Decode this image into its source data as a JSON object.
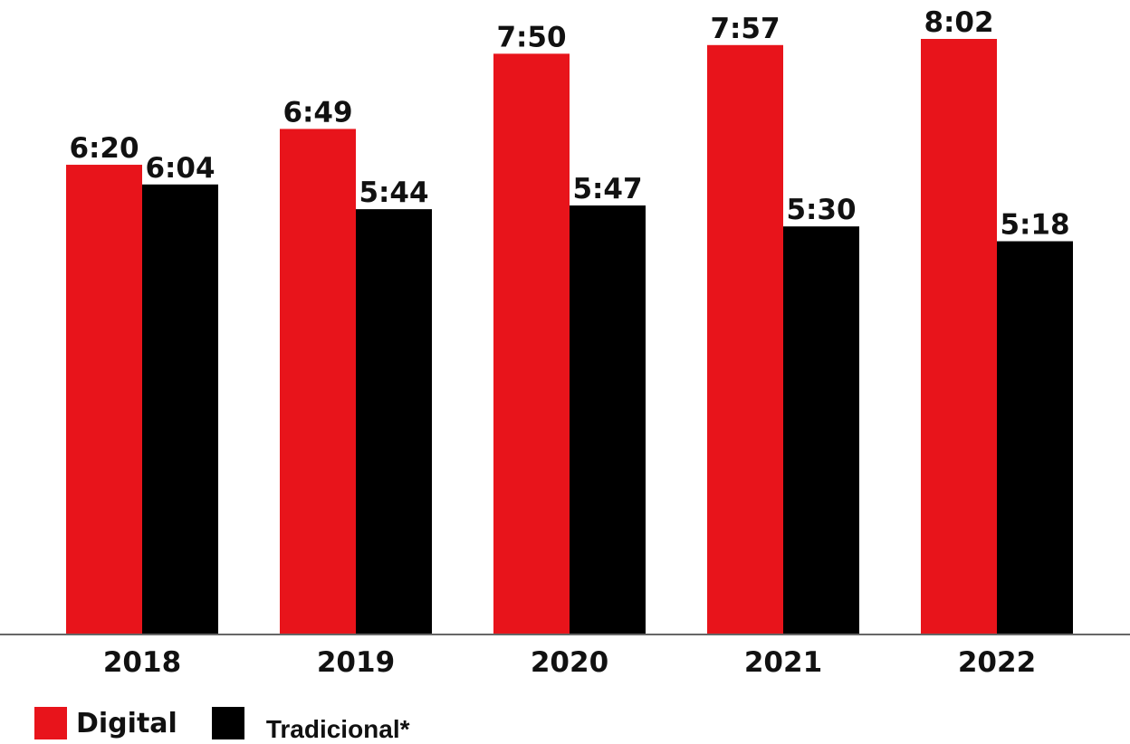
{
  "chart_data": {
    "type": "bar",
    "categories": [
      "2018",
      "2019",
      "2020",
      "2021",
      "2022"
    ],
    "series": [
      {
        "name": "Digital",
        "color": "#e8141b",
        "values": [
          6.333,
          6.817,
          7.833,
          7.95,
          8.033
        ],
        "labels": [
          "6:20",
          "6:49",
          "7:50",
          "7:57",
          "8:02"
        ]
      },
      {
        "name": "Tradicional*",
        "color": "#000000",
        "values": [
          6.067,
          5.733,
          5.783,
          5.5,
          5.3
        ],
        "labels": [
          "6:04",
          "5:44",
          "5:47",
          "5:30",
          "5:18"
        ]
      }
    ],
    "title": "",
    "xlabel": "",
    "ylabel": "",
    "ylim": [
      0,
      8.5
    ],
    "grid": false,
    "legend_position": "bottom-left"
  }
}
